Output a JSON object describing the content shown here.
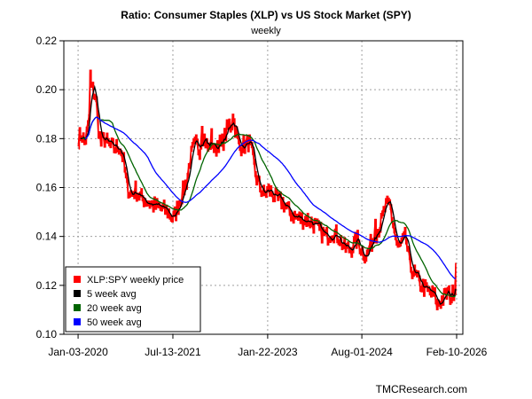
{
  "chart_data": {
    "type": "line",
    "title": "Ratio: Consumer Staples (XLP) vs US Stock Market (SPY)",
    "subtitle": "weekly",
    "credit": "TMCResearch.com",
    "xlabel": "",
    "ylabel": "",
    "ylim": [
      0.1,
      0.22
    ],
    "y_ticks": [
      "0.10",
      "0.12",
      "0.14",
      "0.16",
      "0.18",
      "0.20",
      "0.22"
    ],
    "x_ticks": [
      {
        "label": "Jan-03-2020",
        "t": 2020.0
      },
      {
        "label": "Jul-13-2021",
        "t": 2021.53
      },
      {
        "label": "Jan-22-2023",
        "t": 2023.06
      },
      {
        "label": "Aug-01-2024",
        "t": 2024.58
      },
      {
        "label": "Feb-10-2026",
        "t": 2026.11
      }
    ],
    "xlim": [
      2019.77,
      2026.21
    ],
    "grid": true,
    "legend_position": "bottom-left",
    "legend": [
      {
        "label": "XLP:SPY weekly price",
        "color": "#ff0000"
      },
      {
        "label": "5 week avg",
        "color": "#000000"
      },
      {
        "label": "20 week avg",
        "color": "#006400"
      },
      {
        "label": "50 week avg",
        "color": "#0000ff"
      }
    ],
    "anchors_t": [
      2020.0,
      2020.05,
      2020.1,
      2020.15,
      2020.19,
      2020.23,
      2020.28,
      2020.32,
      2020.36,
      2020.42,
      2020.5,
      2020.58,
      2020.66,
      2020.72,
      2020.78,
      2020.85,
      2020.92,
      2021.0,
      2021.08,
      2021.18,
      2021.28,
      2021.38,
      2021.45,
      2021.53,
      2021.6,
      2021.68,
      2021.75,
      2021.8,
      2021.85,
      2021.9,
      2021.95,
      2022.0,
      2022.05,
      2022.1,
      2022.15,
      2022.2,
      2022.25,
      2022.3,
      2022.35,
      2022.4,
      2022.45,
      2022.5,
      2022.55,
      2022.6,
      2022.65,
      2022.7,
      2022.75,
      2022.8,
      2022.87,
      2022.93,
      2023.0,
      2023.06,
      2023.12,
      2023.2,
      2023.3,
      2023.4,
      2023.5,
      2023.6,
      2023.7,
      2023.8,
      2023.9,
      2024.0,
      2024.1,
      2024.2,
      2024.3,
      2024.4,
      2024.5,
      2024.58,
      2024.65,
      2024.72,
      2024.8,
      2024.88,
      2024.95,
      2025.02,
      2025.08,
      2025.15,
      2025.22,
      2025.28,
      2025.35,
      2025.42,
      2025.5,
      2025.58,
      2025.66,
      2025.74,
      2025.82,
      2025.9,
      2025.96,
      2026.02,
      2026.08,
      2026.11
    ],
    "anchors_v": [
      0.18,
      0.182,
      0.178,
      0.184,
      0.192,
      0.2,
      0.197,
      0.185,
      0.178,
      0.18,
      0.177,
      0.176,
      0.177,
      0.172,
      0.161,
      0.157,
      0.159,
      0.156,
      0.155,
      0.153,
      0.152,
      0.151,
      0.15,
      0.147,
      0.152,
      0.158,
      0.163,
      0.171,
      0.176,
      0.178,
      0.175,
      0.182,
      0.179,
      0.175,
      0.181,
      0.174,
      0.179,
      0.177,
      0.18,
      0.184,
      0.185,
      0.188,
      0.182,
      0.176,
      0.178,
      0.177,
      0.179,
      0.174,
      0.164,
      0.16,
      0.157,
      0.159,
      0.158,
      0.155,
      0.154,
      0.15,
      0.148,
      0.147,
      0.147,
      0.145,
      0.142,
      0.14,
      0.142,
      0.14,
      0.135,
      0.135,
      0.139,
      0.134,
      0.132,
      0.137,
      0.141,
      0.145,
      0.152,
      0.153,
      0.145,
      0.135,
      0.137,
      0.14,
      0.128,
      0.125,
      0.121,
      0.119,
      0.117,
      0.116,
      0.113,
      0.115,
      0.117,
      0.115,
      0.12,
      0.127
    ],
    "spikes": [
      {
        "t": 2020.19,
        "v": 0.207
      },
      {
        "t": 2020.22,
        "v": 0.202
      },
      {
        "t": 2021.8,
        "v": 0.169
      },
      {
        "t": 2022.0,
        "v": 0.184
      },
      {
        "t": 2022.44,
        "v": 0.187
      },
      {
        "t": 2022.5,
        "v": 0.189
      },
      {
        "t": 2024.8,
        "v": 0.146
      },
      {
        "t": 2025.02,
        "v": 0.154
      },
      {
        "t": 2025.04,
        "v": 0.152
      },
      {
        "t": 2025.78,
        "v": 0.111
      },
      {
        "t": 2026.1,
        "v": 0.128
      }
    ]
  }
}
